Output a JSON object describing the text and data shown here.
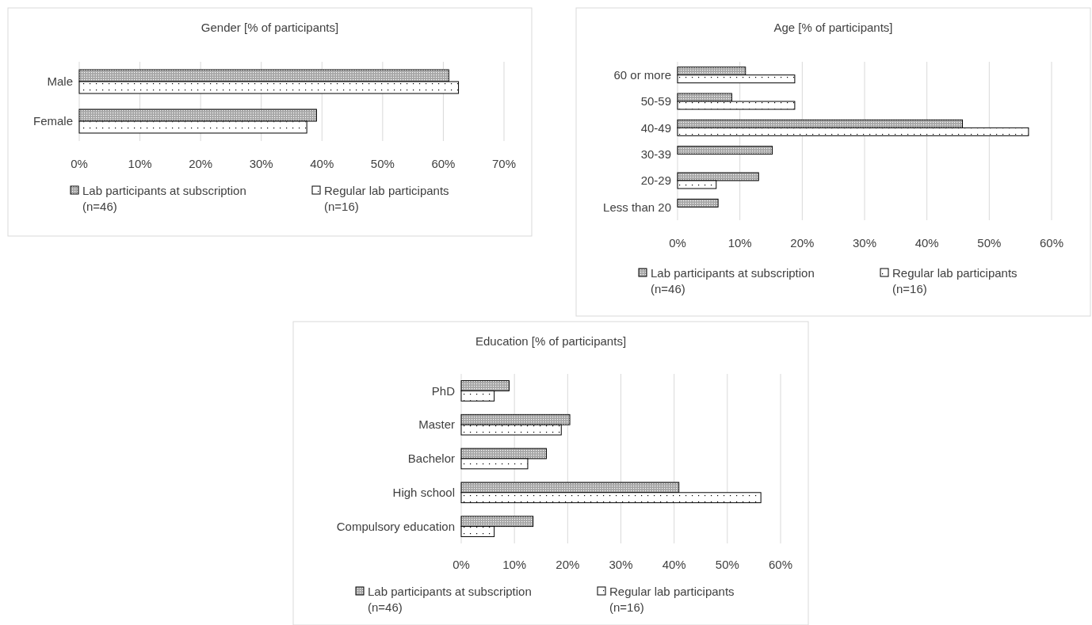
{
  "chart_data": [
    {
      "type": "bar",
      "orientation": "horizontal",
      "title": "Gender [% of participants]",
      "categories": [
        "Male",
        "Female"
      ],
      "series": [
        {
          "name": "Lab participants at subscription\n(n=46)",
          "color": "#a6a6a6",
          "values": [
            60.9,
            39.1
          ]
        },
        {
          "name": "Regular lab participants\n(n=16)",
          "color": "#ffffff",
          "values": [
            62.5,
            37.5
          ]
        }
      ],
      "xlim": [
        0,
        70
      ],
      "xticks": [
        {
          "value": 0,
          "label": "0%"
        },
        {
          "value": 10,
          "label": "10%"
        },
        {
          "value": 20,
          "label": "20%"
        },
        {
          "value": 30,
          "label": "30%"
        },
        {
          "value": 40,
          "label": "40%"
        },
        {
          "value": 50,
          "label": "50%"
        },
        {
          "value": 60,
          "label": "60%"
        },
        {
          "value": 70,
          "label": "70%"
        }
      ],
      "grid": "x",
      "legend": "bottom"
    },
    {
      "type": "bar",
      "orientation": "horizontal",
      "title": "Age [% of participants]",
      "categories": [
        "60 or more",
        "50-59",
        "40-49",
        "30-39",
        "20-29",
        "Less than 20"
      ],
      "series": [
        {
          "name": "Lab participants at subscription\n(n=46)",
          "color": "#a6a6a6",
          "values": [
            10.9,
            8.7,
            45.7,
            15.2,
            13.0,
            6.5
          ]
        },
        {
          "name": "Regular lab participants\n(n=16)",
          "color": "#ffffff",
          "values": [
            18.8,
            18.8,
            56.3,
            0,
            6.2,
            0
          ]
        }
      ],
      "xlim": [
        0,
        60
      ],
      "xticks": [
        {
          "value": 0,
          "label": "0%"
        },
        {
          "value": 10,
          "label": "10%"
        },
        {
          "value": 20,
          "label": "20%"
        },
        {
          "value": 30,
          "label": "30%"
        },
        {
          "value": 40,
          "label": "40%"
        },
        {
          "value": 50,
          "label": "50%"
        },
        {
          "value": 60,
          "label": "60%"
        }
      ],
      "grid": "x",
      "legend": "bottom"
    },
    {
      "type": "bar",
      "orientation": "horizontal",
      "title": "Education [% of participants]",
      "categories": [
        "PhD",
        "Master",
        "Bachelor",
        "High school",
        "Compulsory education"
      ],
      "series": [
        {
          "name": "Lab participants at subscription\n(n=46)",
          "color": "#a6a6a6",
          "values": [
            9.0,
            20.4,
            16.0,
            40.9,
            13.5
          ]
        },
        {
          "name": "Regular lab participants\n(n=16)",
          "color": "#ffffff",
          "values": [
            6.2,
            18.8,
            12.5,
            56.3,
            6.2
          ]
        }
      ],
      "xlim": [
        0,
        60
      ],
      "xticks": [
        {
          "value": 0,
          "label": "0%"
        },
        {
          "value": 10,
          "label": "10%"
        },
        {
          "value": 20,
          "label": "20%"
        },
        {
          "value": 30,
          "label": "30%"
        },
        {
          "value": 40,
          "label": "40%"
        },
        {
          "value": 50,
          "label": "50%"
        },
        {
          "value": 60,
          "label": "60%"
        }
      ],
      "grid": "x",
      "legend": "bottom"
    }
  ]
}
